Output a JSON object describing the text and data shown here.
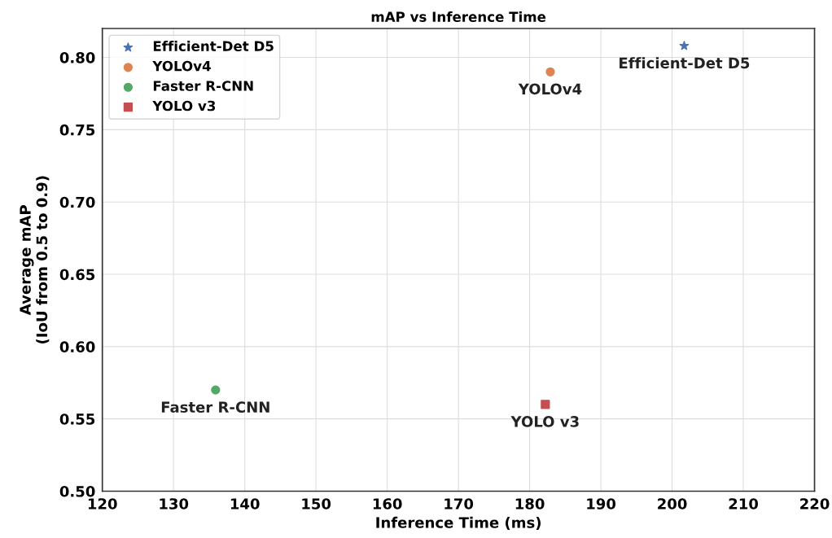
{
  "chart_data": {
    "type": "scatter",
    "title": "mAP vs Inference Time",
    "xlabel": "Inference Time (ms)",
    "ylabel": "Average mAP\n(IoU from 0.5 to 0.9)",
    "xlim": [
      120,
      220
    ],
    "xticks": [
      120,
      130,
      140,
      150,
      160,
      170,
      180,
      190,
      200,
      210,
      220
    ],
    "ylim": [
      0.5,
      0.82
    ],
    "yticks": [
      {
        "value": 0.5,
        "label": "0.50"
      },
      0.55,
      {
        "value": 0.6,
        "label": "0.60"
      },
      0.65,
      {
        "value": 0.7,
        "label": "0.70"
      },
      0.75,
      {
        "value": 0.8,
        "label": "0.80"
      }
    ],
    "grid": true,
    "legend": "top left",
    "series": [
      {
        "name": "Efficient-Det D5",
        "color": "#4c72b0",
        "marker": "star",
        "x": [
          201.7
        ],
        "values": [
          0.808
        ]
      },
      {
        "name": "YOLOv4",
        "color": "#dd8452",
        "marker": "circle",
        "x": [
          182.9
        ],
        "values": [
          0.79
        ]
      },
      {
        "name": "Faster R-CNN",
        "color": "#55a868",
        "marker": "circle",
        "x": [
          135.9
        ],
        "values": [
          0.57
        ]
      },
      {
        "name": "YOLO v3",
        "color": "#c44e52",
        "marker": "square",
        "x": [
          182.2
        ],
        "values": [
          0.56
        ]
      }
    ],
    "annotations": [
      {
        "text": "Efficient-Det D5",
        "x": 201.7,
        "y": 0.808
      },
      {
        "text": "YOLOv4",
        "x": 182.9,
        "y": 0.79
      },
      {
        "text": "Faster R-CNN",
        "x": 135.9,
        "y": 0.57
      },
      {
        "text": "YOLO v3",
        "x": 182.2,
        "y": 0.56
      }
    ]
  }
}
